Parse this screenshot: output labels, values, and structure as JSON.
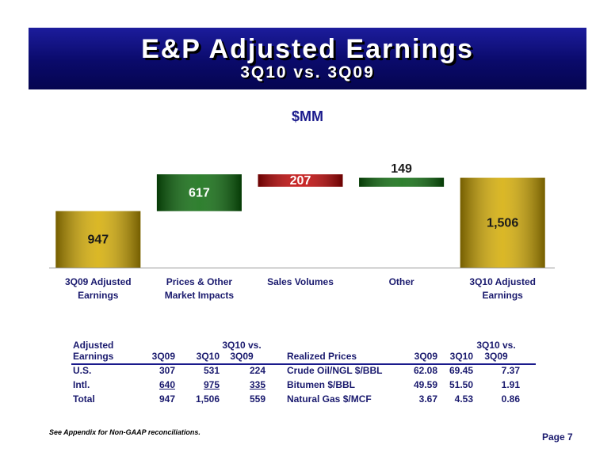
{
  "chart_data": {
    "type": "waterfall",
    "title": "E&P Adjusted Earnings",
    "subtitle": "3Q10 vs. 3Q09",
    "unit_label": "$MM",
    "categories": [
      "3Q09 Adjusted Earnings",
      "Prices & Other Market Impacts",
      "Sales Volumes",
      "Other",
      "3Q10 Adjusted Earnings"
    ],
    "values": [
      947,
      617,
      -207,
      149,
      1506
    ],
    "value_labels": [
      "947",
      "617",
      "207",
      "149",
      "1,506"
    ],
    "colors": [
      "#d4ab00",
      "#0a6a0a",
      "#c00000",
      "#0a6a0a",
      "#d4ab00"
    ]
  },
  "tables": [
    {
      "header": [
        "Adjusted Earnings",
        "3Q09",
        "3Q10",
        "3Q10 vs. 3Q09"
      ],
      "rows": [
        [
          "U.S.",
          "307",
          "531",
          "224"
        ],
        [
          "Intl.",
          "640",
          "975",
          "335"
        ],
        [
          "Total",
          "947",
          "1,506",
          "559"
        ]
      ]
    },
    {
      "header": [
        "Realized Prices",
        "3Q09",
        "3Q10",
        "3Q10 vs. 3Q09"
      ],
      "rows": [
        [
          "Crude Oil/NGL $/BBL",
          "62.08",
          "69.45",
          "7.37"
        ],
        [
          "Bitumen $/BBL",
          "49.59",
          "51.50",
          "1.91"
        ],
        [
          "Natural Gas $/MCF",
          "3.67",
          "4.53",
          "0.86"
        ]
      ]
    }
  ],
  "footnote": "See Appendix for Non-GAAP reconciliations.",
  "page": "Page 7"
}
